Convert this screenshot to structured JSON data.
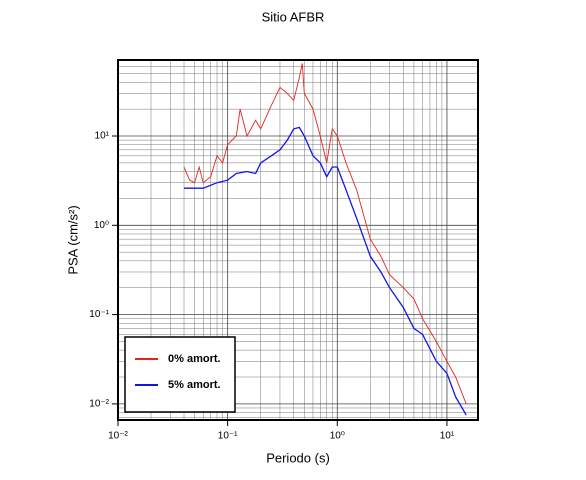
{
  "chart_data": {
    "type": "line",
    "title": "Sitio AFBR",
    "xlabel": "Periodo (s)",
    "ylabel": "PSA (cm/s²)",
    "xscale": "log",
    "yscale": "log",
    "grid": true,
    "legend": "lower left",
    "xlim": [
      0.01,
      19.2
    ],
    "ylim": [
      0.0066,
      71
    ],
    "xticks": [
      {
        "value": 0.01,
        "label": "10⁻²"
      },
      {
        "value": 0.1,
        "label": "10⁻¹"
      },
      {
        "value": 1,
        "label": "10⁰"
      },
      {
        "value": 10,
        "label": "10¹"
      }
    ],
    "yticks": [
      {
        "value": 0.01,
        "label": "10⁻²"
      },
      {
        "value": 0.1,
        "label": "10⁻¹"
      },
      {
        "value": 1,
        "label": "10⁰"
      },
      {
        "value": 10,
        "label": "10¹"
      }
    ],
    "series": [
      {
        "name": "0% amort.",
        "color": "#e8231f",
        "x": [
          0.04,
          0.045,
          0.05,
          0.055,
          0.06,
          0.07,
          0.08,
          0.09,
          0.1,
          0.12,
          0.13,
          0.15,
          0.18,
          0.2,
          0.25,
          0.3,
          0.35,
          0.4,
          0.45,
          0.48,
          0.5,
          0.6,
          0.7,
          0.8,
          0.9,
          1.0,
          1.2,
          1.5,
          2.0,
          2.5,
          3,
          4,
          5,
          6,
          8,
          10,
          12,
          15
        ],
        "values": [
          4.5,
          3.2,
          3.0,
          4.5,
          3.0,
          3.5,
          6,
          5,
          8,
          10,
          20,
          10,
          15,
          12,
          22,
          35,
          30,
          25,
          45,
          65,
          30,
          20,
          10,
          5,
          12,
          10,
          5,
          2.5,
          0.7,
          0.45,
          0.28,
          0.2,
          0.15,
          0.09,
          0.05,
          0.03,
          0.02,
          0.01
        ]
      },
      {
        "name": "5% amort.",
        "color": "#1414e6",
        "x": [
          0.04,
          0.06,
          0.08,
          0.1,
          0.12,
          0.15,
          0.18,
          0.2,
          0.25,
          0.3,
          0.35,
          0.4,
          0.45,
          0.5,
          0.6,
          0.7,
          0.8,
          0.9,
          1.0,
          1.2,
          1.5,
          2.0,
          2.5,
          3,
          4,
          5,
          6,
          8,
          10,
          12,
          15
        ],
        "values": [
          2.6,
          2.6,
          3.0,
          3.2,
          3.8,
          4.0,
          3.8,
          5.0,
          6,
          7,
          9,
          12,
          12.5,
          10,
          6,
          5,
          3.5,
          4.5,
          4.5,
          2.5,
          1.2,
          0.45,
          0.3,
          0.2,
          0.12,
          0.07,
          0.06,
          0.03,
          0.022,
          0.012,
          0.0075
        ]
      }
    ]
  }
}
